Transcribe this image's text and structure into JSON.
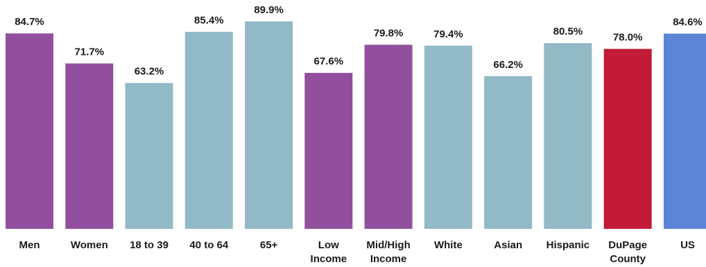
{
  "chart_data": {
    "type": "bar",
    "title": "",
    "xlabel": "",
    "ylabel": "",
    "ylim": [
      0,
      100
    ],
    "grid": false,
    "legend": "none",
    "value_format": "{v}%",
    "categories": [
      [
        "Men"
      ],
      [
        "Women"
      ],
      [
        "18 to 39"
      ],
      [
        "40 to 64"
      ],
      [
        "65+"
      ],
      [
        "Low",
        "Income"
      ],
      [
        "Mid/High",
        "Income"
      ],
      [
        "White"
      ],
      [
        "Asian"
      ],
      [
        "Hispanic"
      ],
      [
        "DuPage",
        "County"
      ],
      [
        "US"
      ]
    ],
    "values": [
      84.7,
      71.7,
      63.2,
      85.4,
      89.9,
      67.6,
      79.8,
      79.4,
      66.2,
      80.5,
      78.0,
      84.6
    ],
    "data_labels": [
      "84.7%",
      "71.7%",
      "63.2%",
      "85.4%",
      "89.9%",
      "67.6%",
      "79.8%",
      "79.4%",
      "66.2%",
      "80.5%",
      "78.0%",
      "84.6%"
    ],
    "bar_colors": [
      "#924f9e",
      "#924f9e",
      "#91b9c6",
      "#91b9c6",
      "#91b9c6",
      "#924f9e",
      "#924f9e",
      "#91b9c6",
      "#91b9c6",
      "#91b9c6",
      "#c11b37",
      "#5b84d6"
    ]
  }
}
